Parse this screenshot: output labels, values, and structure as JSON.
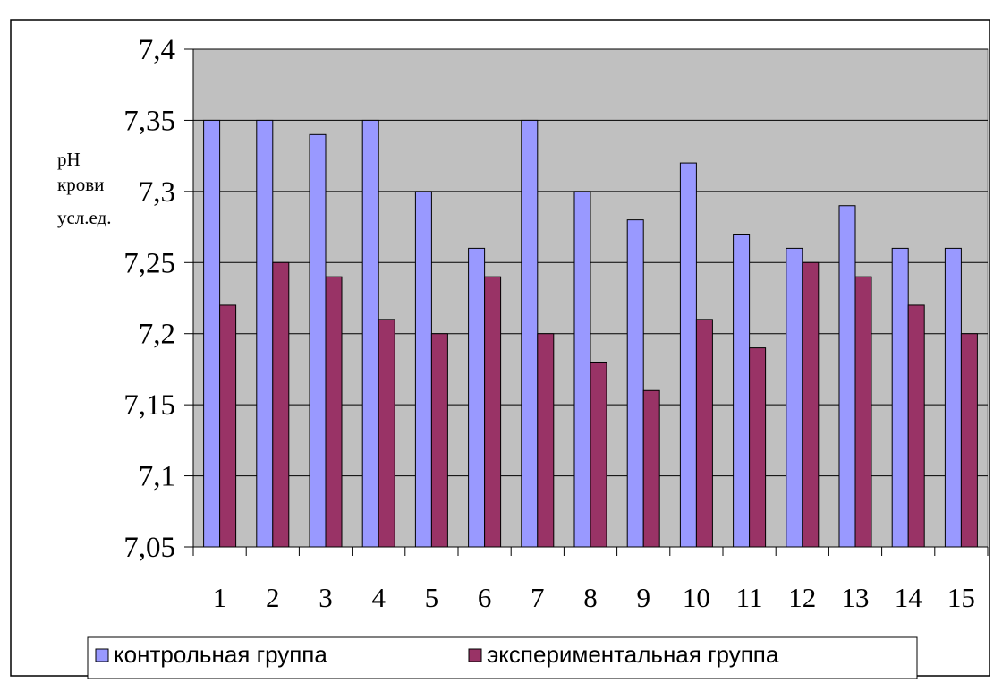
{
  "chart_data": {
    "type": "bar",
    "title": "",
    "xlabel": "",
    "ylabel": "pH крови усл.ед.",
    "ylabel_lines": [
      "pH",
      "крови",
      "усл.ед."
    ],
    "ylim": [
      7.05,
      7.4
    ],
    "yticks": [
      7.05,
      7.1,
      7.15,
      7.2,
      7.25,
      7.3,
      7.35,
      7.4
    ],
    "ytick_labels": [
      "7,05",
      "7,1",
      "7,15",
      "7,2",
      "7,25",
      "7,3",
      "7,35",
      "7,4"
    ],
    "grid": true,
    "legend_position": "bottom",
    "categories": [
      "1",
      "2",
      "3",
      "4",
      "5",
      "6",
      "7",
      "8",
      "9",
      "10",
      "11",
      "12",
      "13",
      "14",
      "15"
    ],
    "series": [
      {
        "name": "контрольная группа",
        "color": "#9999ff",
        "values": [
          7.35,
          7.35,
          7.34,
          7.35,
          7.3,
          7.26,
          7.35,
          7.3,
          7.28,
          7.32,
          7.27,
          7.26,
          7.29,
          7.26,
          7.26
        ]
      },
      {
        "name": "экспериментальная группа",
        "color": "#993366",
        "values": [
          7.22,
          7.25,
          7.24,
          7.21,
          7.2,
          7.24,
          7.2,
          7.18,
          7.16,
          7.21,
          7.19,
          7.25,
          7.24,
          7.22,
          7.2
        ]
      }
    ],
    "plot_background": "#c0c0c0",
    "gridline_color": "#000000"
  }
}
